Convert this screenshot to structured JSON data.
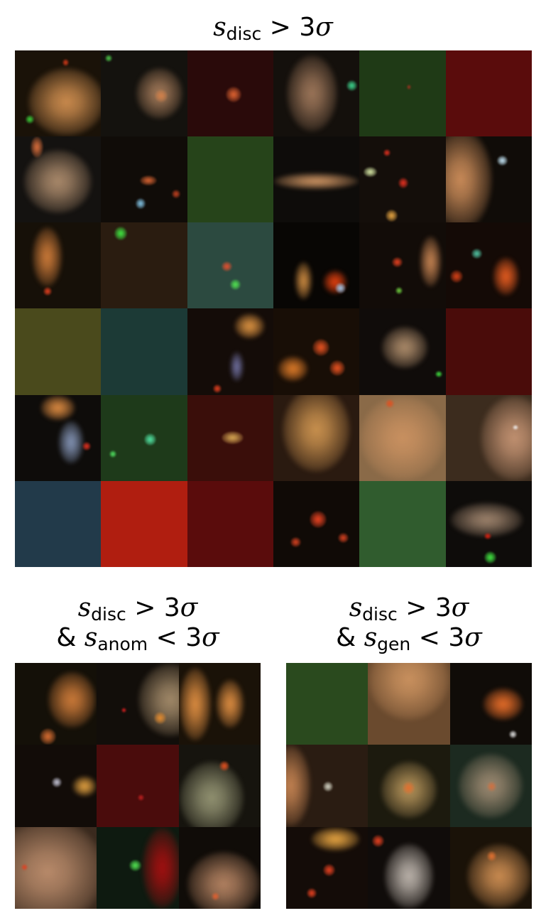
{
  "panels": [
    {
      "id": "all",
      "title": {
        "s": "s",
        "sub1": "disc",
        "rel1": " > 3",
        "sigma1": "σ"
      },
      "rows": 6,
      "cols": 6,
      "tiles": [
        {
          "bg": "#1a1208",
          "blobs": [
            [
              "#c98a4d",
              0.15,
              0.2,
              0.9,
              0.8
            ],
            [
              "#d43a1a",
              0.55,
              0.1,
              0.08,
              0.08
            ],
            [
              "#3ccf3a",
              0.12,
              0.75,
              0.1,
              0.1
            ]
          ]
        },
        {
          "bg": "#14120e",
          "blobs": [
            [
              "#a07858",
              0.4,
              0.2,
              0.55,
              0.6
            ],
            [
              "#d0804a",
              0.62,
              0.45,
              0.15,
              0.15
            ],
            [
              "#4ec84a",
              0.05,
              0.05,
              0.08,
              0.08
            ]
          ]
        },
        {
          "bg": "#2a0a0a",
          "blobs": [
            [
              "#d86030",
              0.45,
              0.42,
              0.18,
              0.18
            ]
          ]
        },
        {
          "bg": "#14100c",
          "blobs": [
            [
              "#9a7458",
              0.15,
              0.05,
              0.6,
              0.9
            ],
            [
              "#3ccf8a",
              0.85,
              0.35,
              0.12,
              0.12
            ]
          ]
        },
        {
          "bg": "#1f3a16",
          "blobs": [
            [
              "#a03020",
              0.55,
              0.4,
              0.05,
              0.05
            ]
          ]
        },
        {
          "bg": "#5a0c0c",
          "blobs": []
        },
        {
          "bg": "#141210",
          "blobs": [
            [
              "#a8886a",
              0.1,
              0.15,
              0.8,
              0.75
            ],
            [
              "#d06a3a",
              0.18,
              0.0,
              0.15,
              0.25
            ]
          ]
        },
        {
          "bg": "#100c08",
          "blobs": [
            [
              "#d06030",
              0.45,
              0.45,
              0.2,
              0.12
            ],
            [
              "#80c0e0",
              0.4,
              0.72,
              0.12,
              0.12
            ],
            [
              "#c04020",
              0.82,
              0.62,
              0.1,
              0.1
            ]
          ]
        },
        {
          "bg": "#26441a",
          "blobs": []
        },
        {
          "bg": "#0e0c0a",
          "blobs": [
            [
              "#c89060",
              0.0,
              0.42,
              1.0,
              0.2
            ]
          ]
        },
        {
          "bg": "#140e0a",
          "blobs": [
            [
              "#d0e0a0",
              0.05,
              0.35,
              0.15,
              0.12
            ],
            [
              "#e03020",
              0.45,
              0.48,
              0.12,
              0.12
            ],
            [
              "#e0a040",
              0.3,
              0.85,
              0.14,
              0.14
            ],
            [
              "#e03020",
              0.28,
              0.15,
              0.08,
              0.08
            ]
          ]
        },
        {
          "bg": "#100c08",
          "blobs": [
            [
              "#c88a58",
              -0.2,
              -0.1,
              0.75,
              1.2
            ],
            [
              "#c0e0f0",
              0.6,
              0.22,
              0.12,
              0.12
            ]
          ]
        },
        {
          "bg": "#161008",
          "blobs": [
            [
              "#c87838",
              0.2,
              0.05,
              0.35,
              0.7
            ],
            [
              "#e04020",
              0.33,
              0.75,
              0.1,
              0.1
            ]
          ]
        },
        {
          "bg": "#2a1c10",
          "blobs": [
            [
              "#40e040",
              0.15,
              0.05,
              0.15,
              0.15
            ]
          ]
        },
        {
          "bg": "#2c4a40",
          "blobs": [
            [
              "#e05030",
              0.4,
              0.45,
              0.12,
              0.12
            ],
            [
              "#50e050",
              0.5,
              0.66,
              0.12,
              0.12
            ]
          ]
        },
        {
          "bg": "#080604",
          "blobs": [
            [
              "#c88840",
              0.25,
              0.45,
              0.2,
              0.45
            ],
            [
              "#e04010",
              0.58,
              0.55,
              0.28,
              0.28
            ],
            [
              "#a0c0e0",
              0.72,
              0.7,
              0.12,
              0.12
            ]
          ]
        },
        {
          "bg": "#120c08",
          "blobs": [
            [
              "#e04020",
              0.38,
              0.4,
              0.12,
              0.12
            ],
            [
              "#c08050",
              0.7,
              0.15,
              0.25,
              0.6
            ],
            [
              "#70d040",
              0.42,
              0.75,
              0.08,
              0.08
            ]
          ]
        },
        {
          "bg": "#140a06",
          "blobs": [
            [
              "#e05a20",
              0.55,
              0.4,
              0.3,
              0.45
            ],
            [
              "#50c0a0",
              0.3,
              0.3,
              0.12,
              0.12
            ],
            [
              "#d04018",
              0.05,
              0.55,
              0.15,
              0.15
            ]
          ]
        },
        {
          "bg": "#4a4a1c",
          "blobs": []
        },
        {
          "bg": "#1c3a36",
          "blobs": []
        },
        {
          "bg": "#140c08",
          "blobs": [
            [
              "#d89040",
              0.55,
              0.05,
              0.35,
              0.3
            ],
            [
              "#7070a0",
              0.5,
              0.5,
              0.15,
              0.35
            ],
            [
              "#e04020",
              0.3,
              0.88,
              0.1,
              0.1
            ]
          ]
        },
        {
          "bg": "#180e06",
          "blobs": [
            [
              "#d87828",
              0.05,
              0.55,
              0.35,
              0.3
            ],
            [
              "#e05020",
              0.45,
              0.35,
              0.2,
              0.2
            ],
            [
              "#e05020",
              0.65,
              0.6,
              0.18,
              0.18
            ]
          ]
        },
        {
          "bg": "#100c0a",
          "blobs": [
            [
              "#a88868",
              0.25,
              0.2,
              0.55,
              0.5
            ],
            [
              "#40e040",
              0.88,
              0.72,
              0.08,
              0.08
            ]
          ]
        },
        {
          "bg": "#4a0c0a",
          "blobs": []
        },
        {
          "bg": "#0e0c0a",
          "blobs": [
            [
              "#d88840",
              0.3,
              0.0,
              0.4,
              0.3
            ],
            [
              "#8090b0",
              0.5,
              0.3,
              0.3,
              0.5
            ],
            [
              "#e03020",
              0.78,
              0.55,
              0.1,
              0.1
            ]
          ]
        },
        {
          "bg": "#1e3a1a",
          "blobs": [
            [
              "#50e0a0",
              0.5,
              0.45,
              0.14,
              0.14
            ],
            [
              "#50e060",
              0.1,
              0.65,
              0.08,
              0.08
            ]
          ]
        },
        {
          "bg": "#3a0e0a",
          "blobs": [
            [
              "#d0a050",
              0.4,
              0.42,
              0.25,
              0.15
            ]
          ]
        },
        {
          "bg": "#2a1a10",
          "blobs": [
            [
              "#c8904e",
              0.1,
              -0.1,
              0.8,
              1.0
            ]
          ]
        },
        {
          "bg": "#8a6a48",
          "blobs": [
            [
              "#c89060",
              0.0,
              0.0,
              1.0,
              1.0
            ],
            [
              "#e05020",
              0.3,
              0.05,
              0.1,
              0.1
            ]
          ]
        },
        {
          "bg": "#3c2c1e",
          "blobs": [
            [
              "#c09070",
              0.4,
              0.0,
              0.8,
              1.0
            ],
            [
              "#f0f0f0",
              0.78,
              0.35,
              0.06,
              0.06
            ]
          ]
        },
        {
          "bg": "#223a4a",
          "blobs": []
        },
        {
          "bg": "#b01e10",
          "blobs": []
        },
        {
          "bg": "#5a0c0c",
          "blobs": []
        },
        {
          "bg": "#100a06",
          "blobs": [
            [
              "#e04020",
              0.42,
              0.35,
              0.2,
              0.2
            ],
            [
              "#d04020",
              0.2,
              0.65,
              0.12,
              0.12
            ],
            [
              "#d04020",
              0.75,
              0.6,
              0.12,
              0.12
            ]
          ]
        },
        {
          "bg": "#305c2e",
          "blobs": []
        },
        {
          "bg": "#0e0c0a",
          "blobs": [
            [
              "#9a806a",
              0.05,
              0.25,
              0.85,
              0.4
            ],
            [
              "#e02010",
              0.45,
              0.6,
              0.08,
              0.08
            ],
            [
              "#40e040",
              0.45,
              0.82,
              0.14,
              0.14
            ]
          ]
        }
      ]
    },
    {
      "id": "anom",
      "title": {
        "s": "s",
        "sub1": "disc",
        "rel1": " > 3",
        "sigma1": "σ",
        "amp": "& ",
        "s2": "s",
        "sub2": "anom",
        "rel2": " < 3",
        "sigma2": "σ"
      },
      "rows": 3,
      "cols": 3,
      "tiles": [
        {
          "bg": "#141008",
          "blobs": [
            [
              "#c87838",
              0.4,
              0.1,
              0.6,
              0.7
            ],
            [
              "#d06a30",
              0.3,
              0.8,
              0.2,
              0.2
            ]
          ]
        },
        {
          "bg": "#120e0a",
          "blobs": [
            [
              "#a08868",
              0.5,
              0.0,
              0.8,
              0.9
            ],
            [
              "#e08a30",
              0.7,
              0.6,
              0.15,
              0.15
            ],
            [
              "#e02020",
              0.3,
              0.55,
              0.06,
              0.06
            ]
          ]
        },
        {
          "bg": "#1a1208",
          "blobs": [
            [
              "#d88a40",
              0.0,
              0.05,
              0.4,
              0.9
            ],
            [
              "#d88a40",
              0.45,
              0.2,
              0.35,
              0.6
            ]
          ]
        },
        {
          "bg": "#120c08",
          "blobs": [
            [
              "#e0a040",
              0.7,
              0.38,
              0.3,
              0.25
            ],
            [
              "#c0c0d0",
              0.45,
              0.4,
              0.12,
              0.12
            ]
          ]
        },
        {
          "bg": "#4a0c0c",
          "blobs": [
            [
              "#c02020",
              0.5,
              0.6,
              0.08,
              0.08
            ]
          ]
        },
        {
          "bg": "#16140e",
          "blobs": [
            [
              "#909070",
              0.0,
              0.2,
              0.8,
              0.9
            ],
            [
              "#e05020",
              0.5,
              0.2,
              0.12,
              0.12
            ]
          ]
        },
        {
          "bg": "#3a2a1e",
          "blobs": [
            [
              "#b88a6a",
              -0.3,
              -0.1,
              1.4,
              1.3
            ],
            [
              "#e04020",
              0.08,
              0.45,
              0.08,
              0.08
            ]
          ]
        },
        {
          "bg": "#0e1a10",
          "blobs": [
            [
              "#a01010",
              0.55,
              0.0,
              0.5,
              1.0
            ],
            [
              "#50e050",
              0.4,
              0.4,
              0.14,
              0.14
            ]
          ]
        },
        {
          "bg": "#100c08",
          "blobs": [
            [
              "#b08060",
              0.1,
              0.3,
              0.9,
              0.8
            ],
            [
              "#e06030",
              0.4,
              0.8,
              0.1,
              0.1
            ]
          ]
        }
      ]
    },
    {
      "id": "gen",
      "title": {
        "s": "s",
        "sub1": "disc",
        "rel1": " > 3",
        "sigma1": "σ",
        "amp": "& ",
        "s2": "s",
        "sub2": "gen",
        "rel2": " < 3",
        "sigma2": "σ"
      },
      "rows": 3,
      "cols": 3,
      "tiles": [
        {
          "bg": "#2a4a1e",
          "blobs": []
        },
        {
          "bg": "#6a4a2e",
          "blobs": [
            [
              "#c8905e",
              0.0,
              -0.3,
              1.0,
              1.0
            ]
          ]
        },
        {
          "bg": "#100c08",
          "blobs": [
            [
              "#e06a28",
              0.4,
              0.3,
              0.5,
              0.4
            ],
            [
              "#e0e0e0",
              0.72,
              0.82,
              0.1,
              0.1
            ]
          ]
        },
        {
          "bg": "#2a1c12",
          "blobs": [
            [
              "#c08050",
              -0.2,
              0.0,
              0.5,
              1.0
            ],
            [
              "#d0d0c0",
              0.45,
              0.45,
              0.12,
              0.12
            ]
          ]
        },
        {
          "bg": "#1c1a0e",
          "blobs": [
            [
              "#b09058",
              0.15,
              0.2,
              0.7,
              0.7
            ],
            [
              "#e07030",
              0.42,
              0.45,
              0.15,
              0.15
            ]
          ]
        },
        {
          "bg": "#1c2a20",
          "blobs": [
            [
              "#9a8870",
              0.1,
              0.1,
              0.8,
              0.8
            ],
            [
              "#d07040",
              0.45,
              0.45,
              0.12,
              0.12
            ]
          ]
        },
        {
          "bg": "#140c08",
          "blobs": [
            [
              "#e0a040",
              0.3,
              0.0,
              0.6,
              0.3
            ],
            [
              "#e04020",
              0.45,
              0.45,
              0.15,
              0.15
            ],
            [
              "#e04020",
              0.25,
              0.75,
              0.12,
              0.12
            ]
          ]
        },
        {
          "bg": "#100c0a",
          "blobs": [
            [
              "#b8b0a8",
              0.2,
              0.2,
              0.6,
              0.8
            ],
            [
              "#e04020",
              0.05,
              0.1,
              0.15,
              0.15
            ]
          ]
        },
        {
          "bg": "#1a1208",
          "blobs": [
            [
              "#c88a50",
              0.2,
              0.2,
              0.8,
              0.8
            ],
            [
              "#e07030",
              0.45,
              0.3,
              0.12,
              0.12
            ]
          ]
        }
      ]
    }
  ]
}
